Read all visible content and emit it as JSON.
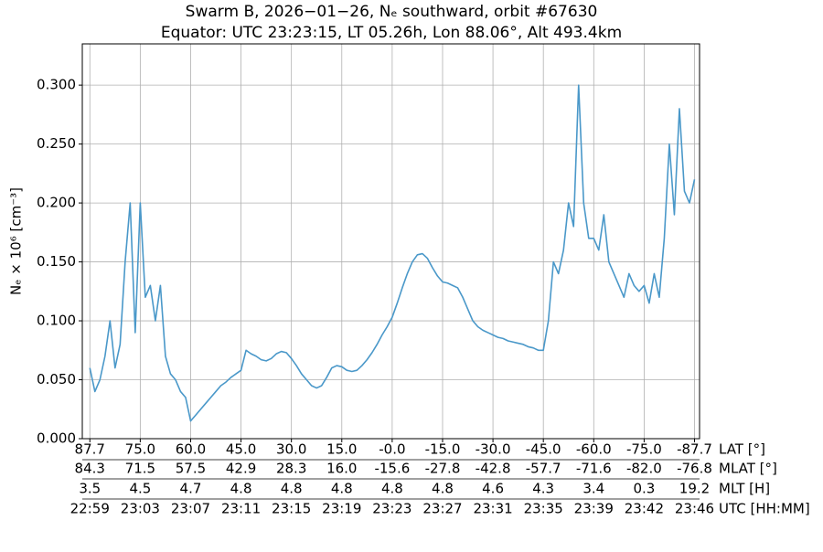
{
  "chart_data": {
    "type": "line",
    "title": "Swarm B, 2026−01−26, Nₑ southward, orbit #67630",
    "subtitle": "Equator: UTC 23:23:15, LT 05.26h, Lon 88.06°, Alt 493.4km",
    "ylabel": "Nₑ × 10⁶ [cm⁻³]",
    "x": [
      0,
      1,
      2,
      3,
      4,
      5,
      6,
      7,
      8,
      9,
      10,
      11,
      12,
      13,
      14,
      15,
      16,
      17,
      18,
      19,
      20,
      21,
      22,
      23,
      24,
      25,
      26,
      27,
      28,
      29,
      30,
      31,
      32,
      33,
      34,
      35,
      36,
      37,
      38,
      39,
      40,
      41,
      42,
      43,
      44,
      45,
      46,
      47,
      48,
      49,
      50,
      51,
      52,
      53,
      54,
      55,
      56,
      57,
      58,
      59,
      60,
      61,
      62,
      63,
      64,
      65,
      66,
      67,
      68,
      69,
      70,
      71,
      72,
      73,
      74,
      75,
      76,
      77,
      78,
      79,
      80,
      81,
      82,
      83,
      84,
      85,
      86,
      87,
      88,
      89,
      90,
      91,
      92,
      93,
      94,
      95,
      96,
      97,
      98,
      99,
      100,
      101,
      102,
      103,
      104,
      105,
      106,
      107,
      108,
      109,
      110,
      111,
      112,
      113,
      114,
      115,
      116,
      117,
      118,
      119,
      120
    ],
    "series": [
      {
        "color": "#4a98c9",
        "values": [
          0.06,
          0.04,
          0.05,
          0.07,
          0.1,
          0.06,
          0.08,
          0.15,
          0.2,
          0.09,
          0.2,
          0.12,
          0.13,
          0.1,
          0.13,
          0.07,
          0.055,
          0.05,
          0.04,
          0.035,
          0.015,
          0.02,
          0.025,
          0.03,
          0.035,
          0.04,
          0.045,
          0.048,
          0.052,
          0.055,
          0.058,
          0.075,
          0.072,
          0.07,
          0.067,
          0.066,
          0.068,
          0.072,
          0.074,
          0.073,
          0.068,
          0.062,
          0.055,
          0.05,
          0.045,
          0.043,
          0.045,
          0.052,
          0.06,
          0.062,
          0.061,
          0.058,
          0.057,
          0.058,
          0.062,
          0.067,
          0.073,
          0.08,
          0.088,
          0.095,
          0.103,
          0.115,
          0.128,
          0.14,
          0.15,
          0.156,
          0.157,
          0.153,
          0.145,
          0.138,
          0.133,
          0.132,
          0.13,
          0.128,
          0.12,
          0.11,
          0.1,
          0.095,
          0.092,
          0.09,
          0.088,
          0.086,
          0.085,
          0.083,
          0.082,
          0.081,
          0.08,
          0.078,
          0.077,
          0.075,
          0.075,
          0.1,
          0.15,
          0.14,
          0.16,
          0.2,
          0.18,
          0.3,
          0.2,
          0.17,
          0.17,
          0.16,
          0.19,
          0.15,
          0.14,
          0.13,
          0.12,
          0.14,
          0.13,
          0.125,
          0.13,
          0.115,
          0.14,
          0.12,
          0.17,
          0.25,
          0.19,
          0.28,
          0.21,
          0.2,
          0.22
        ]
      }
    ],
    "xlim": [
      -1.5,
      121
    ],
    "xticks": [
      0,
      10,
      20,
      30,
      40,
      50,
      60,
      70,
      80,
      90,
      100,
      110,
      120
    ],
    "x_tick_rows": [
      {
        "name": "LAT [°]",
        "labels": [
          "87.7",
          "75.0",
          "60.0",
          "45.0",
          "30.0",
          "15.0",
          "-0.0",
          "-15.0",
          "-30.0",
          "-45.0",
          "-60.0",
          "-75.0",
          "-87.7"
        ]
      },
      {
        "name": "MLAT [°]",
        "labels": [
          "84.3",
          "71.5",
          "57.5",
          "42.9",
          "28.3",
          "16.0",
          "-15.6",
          "-27.8",
          "-42.8",
          "-57.7",
          "-71.6",
          "-82.0",
          "-76.8"
        ]
      },
      {
        "name": "MLT [H]",
        "labels": [
          "3.5",
          "4.5",
          "4.7",
          "4.8",
          "4.8",
          "4.8",
          "4.8",
          "4.8",
          "4.6",
          "4.3",
          "3.4",
          "0.3",
          "19.2"
        ]
      },
      {
        "name": "UTC [HH:MM]",
        "labels": [
          "22:59",
          "23:03",
          "23:07",
          "23:11",
          "23:15",
          "23:19",
          "23:23",
          "23:27",
          "23:31",
          "23:35",
          "23:39",
          "23:42",
          "23:46"
        ]
      }
    ],
    "ylim": [
      0,
      0.335
    ],
    "yticks": [
      {
        "value": 0,
        "label": "0.000"
      },
      {
        "value": 0.05,
        "label": "0.050"
      },
      {
        "value": 0.1,
        "label": "0.100"
      },
      {
        "value": 0.15,
        "label": "0.150"
      },
      {
        "value": 0.2,
        "label": "0.200"
      },
      {
        "value": 0.25,
        "label": "0.250"
      },
      {
        "value": 0.3,
        "label": "0.300"
      }
    ],
    "grid": true
  }
}
